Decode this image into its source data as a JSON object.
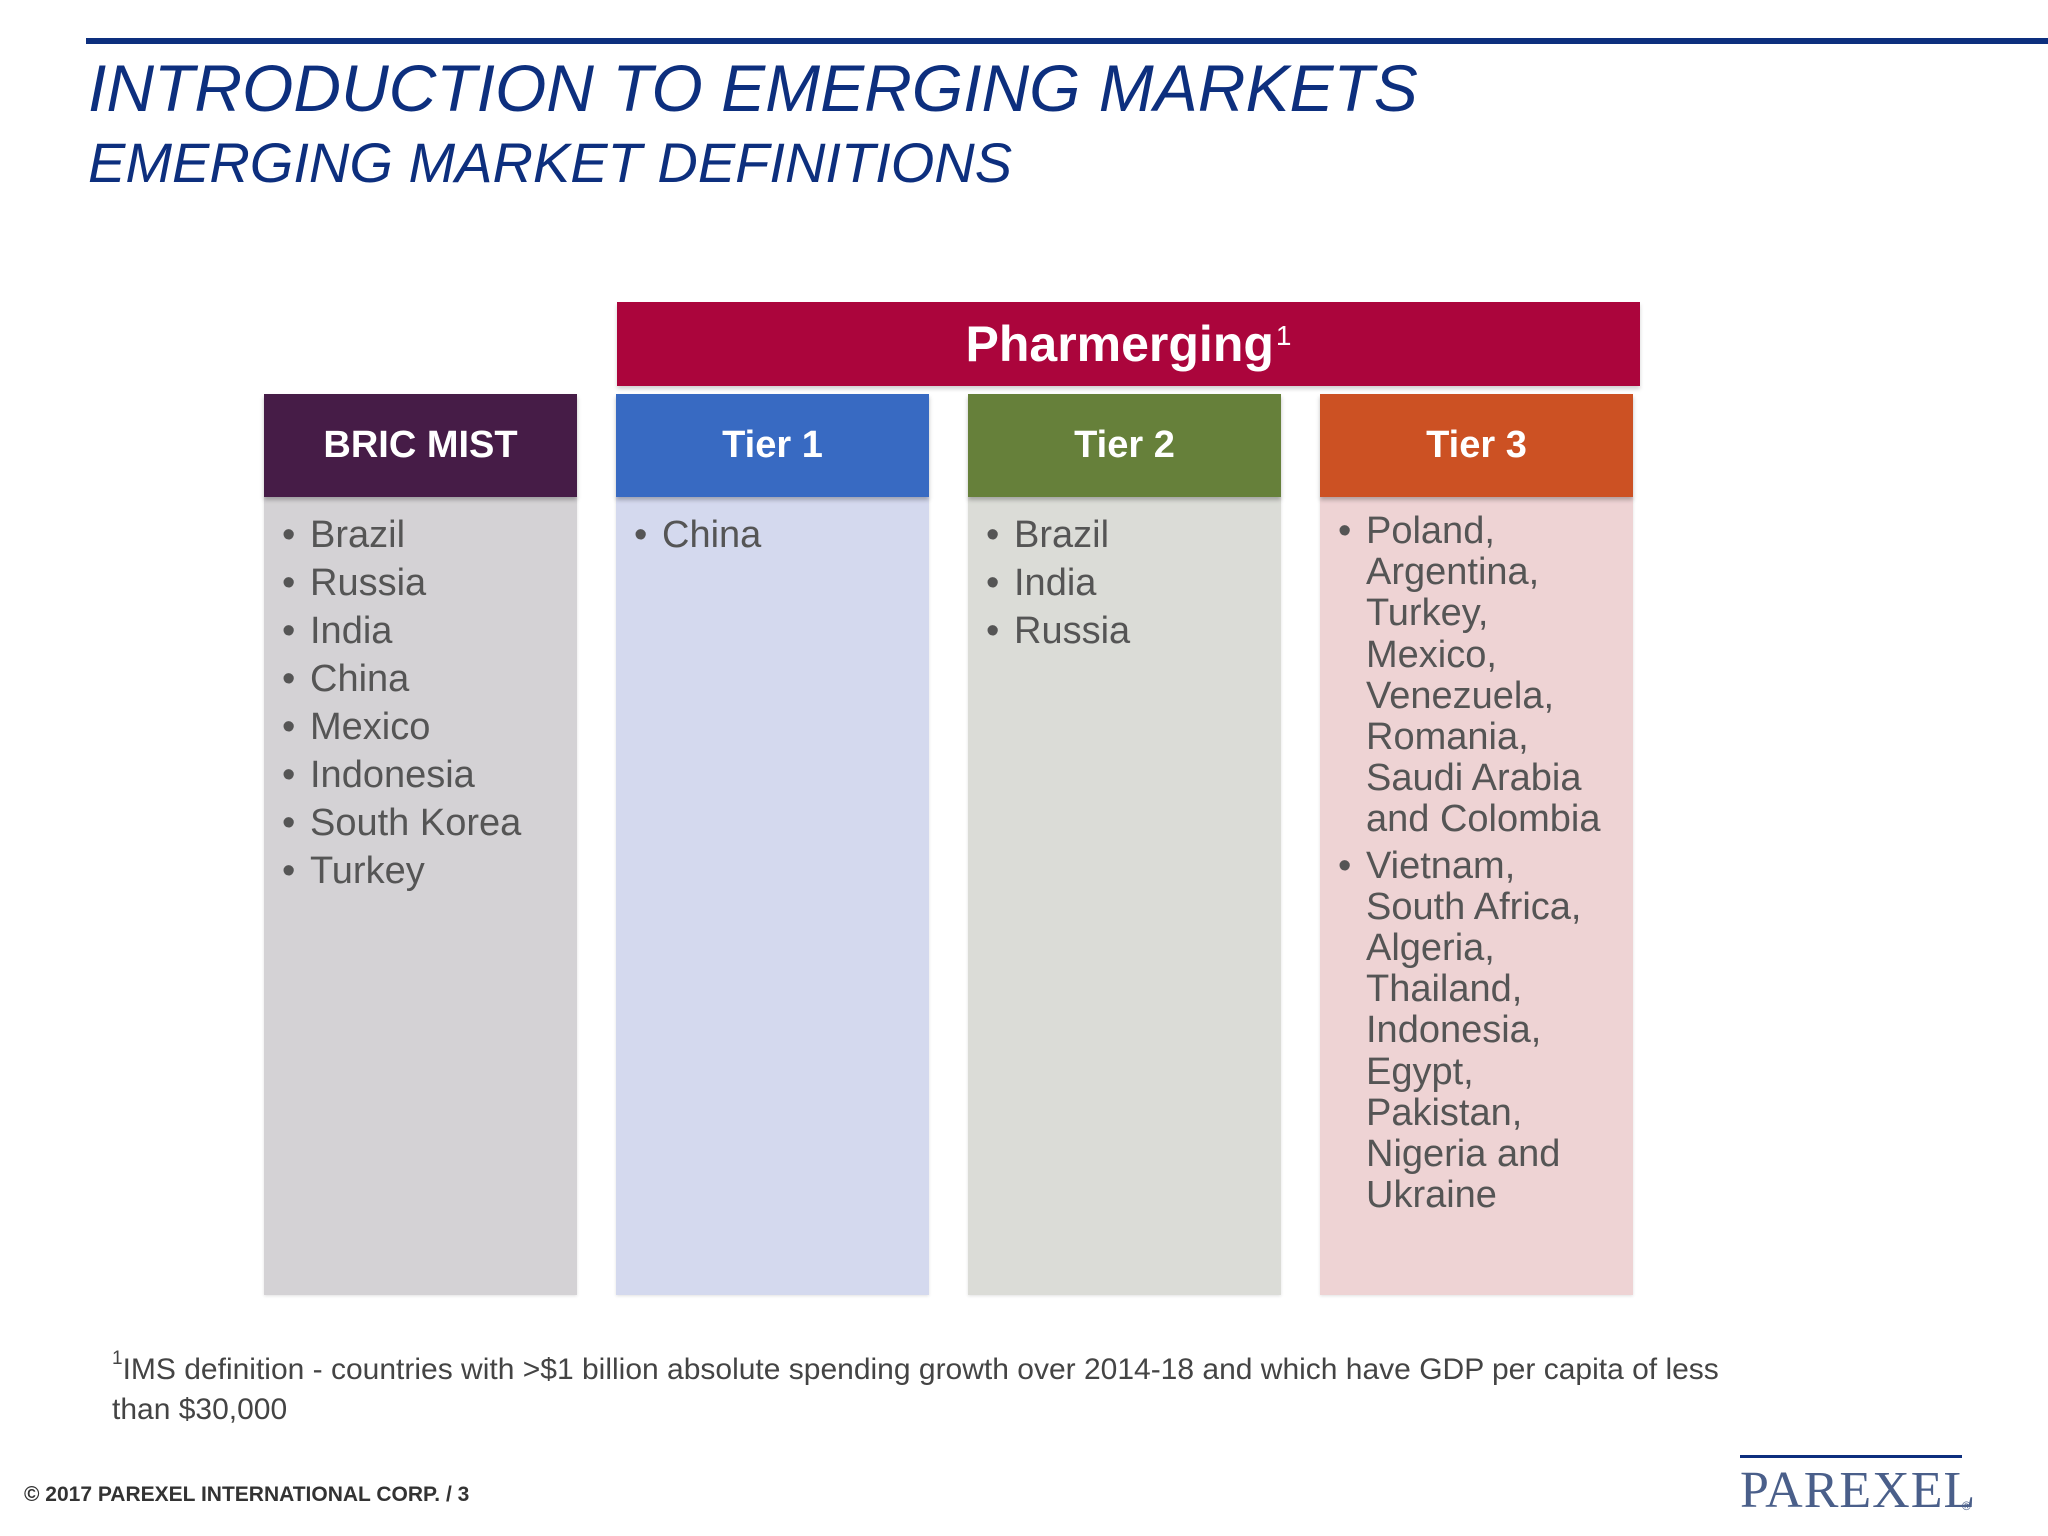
{
  "header": {
    "title": "INTRODUCTION TO EMERGING MARKETS",
    "subtitle": "EMERGING MARKET DEFINITIONS"
  },
  "banner": {
    "label": "Pharmerging",
    "footnote_marker": "1"
  },
  "columns": [
    {
      "heading": "BRIC MIST",
      "head_color": "#461c47",
      "body_color": "#d4d2d5",
      "items": [
        "Brazil",
        "Russia",
        "India",
        "China",
        "Mexico",
        "Indonesia",
        "South Korea",
        "Turkey"
      ]
    },
    {
      "heading": "Tier 1",
      "head_color": "#386ac2",
      "body_color": "#d4d9ee",
      "items": [
        "China"
      ]
    },
    {
      "heading": "Tier 2",
      "head_color": "#66803a",
      "body_color": "#dbdcd7",
      "items": [
        "Brazil",
        "India",
        "Russia"
      ]
    },
    {
      "heading": "Tier 3",
      "head_color": "#cc5123",
      "body_color": "#eed3d4",
      "items": [
        "Poland, Argentina, Turkey, Mexico, Venezuela, Romania, Saudi Arabia and Colombia",
        "Vietnam, South Africa, Algeria, Thailand, Indonesia, Egypt, Pakistan, Nigeria and Ukraine"
      ]
    }
  ],
  "footnote": {
    "marker": "1",
    "text": "IMS definition - countries with >$1 billion absolute spending growth over 2014-18 and which have GDP per capita of less than $30,000"
  },
  "footer": {
    "copyright": "© 2017 PAREXEL INTERNATIONAL CORP.   /   3",
    "logo_text": "PAREXEL",
    "logo_mark": "®"
  },
  "colors": {
    "title": "#0d2f7e",
    "banner": "#ab053c"
  }
}
